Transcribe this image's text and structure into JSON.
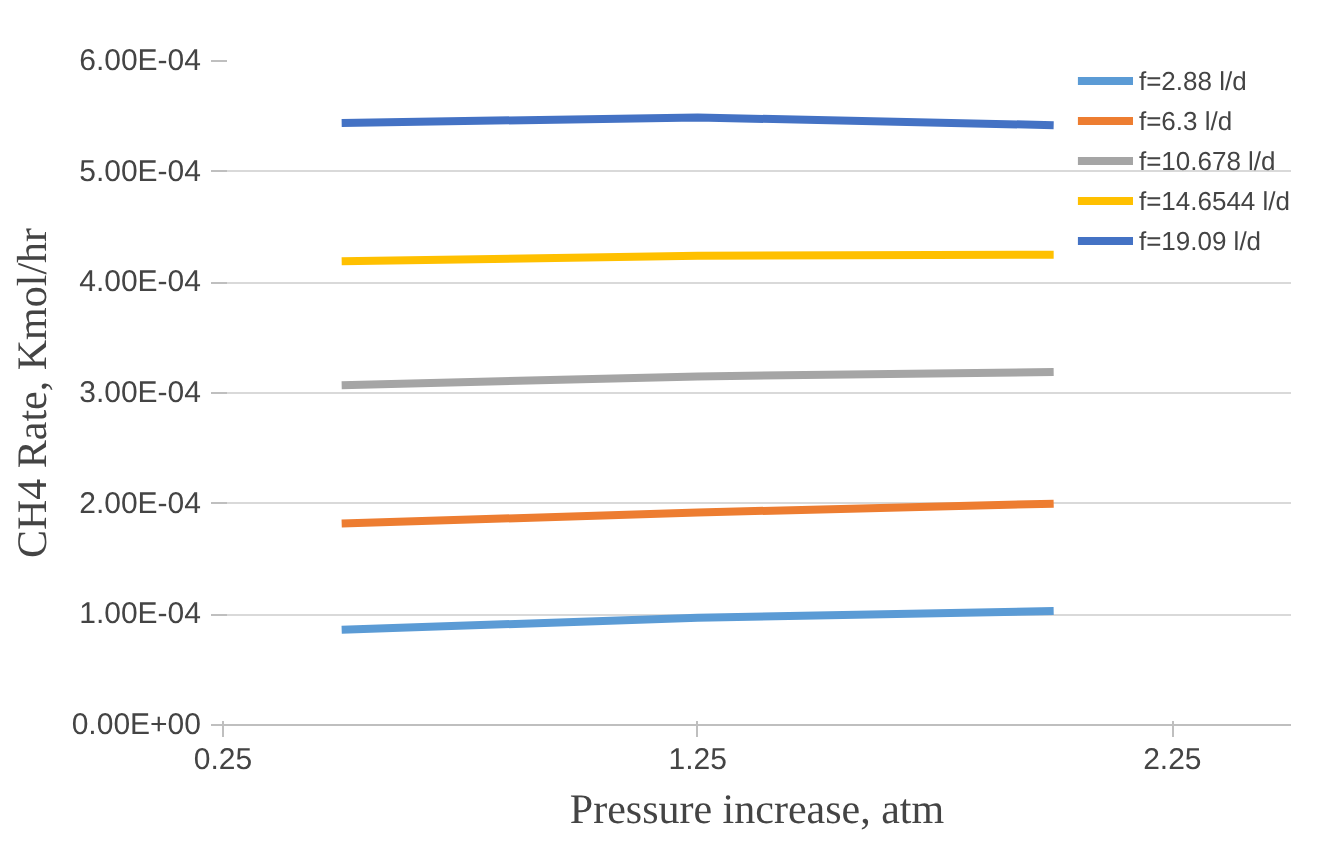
{
  "chart_data": {
    "type": "line",
    "xlabel": "Pressure increase, atm",
    "ylabel": "CH4 Rate, Kmol/hr",
    "x": [
      0.5,
      1.25,
      2.0
    ],
    "xlim": [
      0.25,
      2.5
    ],
    "xticks": [
      0.25,
      1.25,
      2.25
    ],
    "ylim": [
      0,
      0.0006
    ],
    "yticks": [
      {
        "value": 0,
        "label": "0.00E+00"
      },
      {
        "value": 0.0001,
        "label": "1.00E-04"
      },
      {
        "value": 0.0002,
        "label": "2.00E-04"
      },
      {
        "value": 0.0003,
        "label": "3.00E-04"
      },
      {
        "value": 0.0004,
        "label": "4.00E-04"
      },
      {
        "value": 0.0005,
        "label": "5.00E-04"
      },
      {
        "value": 0.0006,
        "label": "6.00E-04"
      }
    ],
    "grid": "y",
    "legend": "top right",
    "marker": "none",
    "line_style": "solid",
    "series": [
      {
        "name": "f=2.88 l/d",
        "color": "#5b9bd5",
        "values": [
          8.6e-05,
          9.7e-05,
          0.000103
        ]
      },
      {
        "name": "f=6.3 l/d",
        "color": "#ed7d31",
        "values": [
          0.000182,
          0.000192,
          0.0002
        ]
      },
      {
        "name": "f=10.678 l/d",
        "color": "#a5a5a5",
        "values": [
          0.000307,
          0.000315,
          0.000319
        ]
      },
      {
        "name": "f=14.6544 l/d",
        "color": "#ffc000",
        "values": [
          0.000419,
          0.000424,
          0.000425
        ]
      },
      {
        "name": "f=19.09 l/d",
        "color": "#4472c4",
        "values": [
          0.000544,
          0.000549,
          0.000542
        ]
      }
    ]
  }
}
